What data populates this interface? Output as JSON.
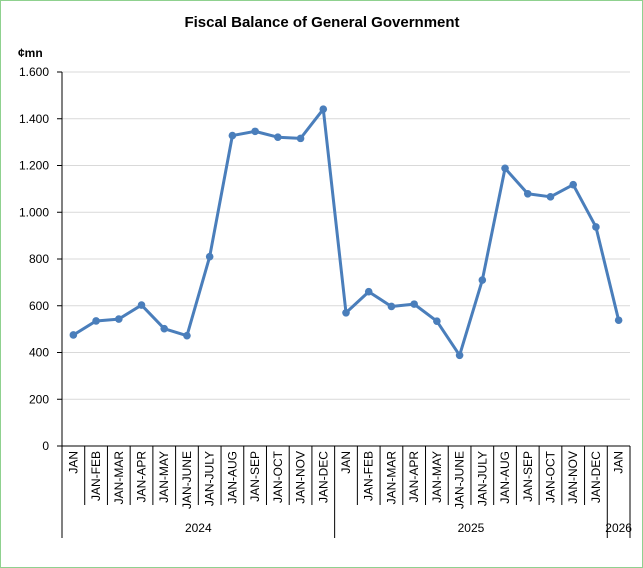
{
  "chart_data": {
    "type": "line",
    "title": "Fiscal Balance of General Government",
    "ylabel": "¢mn",
    "ylim": [
      0,
      1600
    ],
    "yticks": [
      0,
      200,
      400,
      600,
      800,
      1000,
      1200,
      1400,
      1600
    ],
    "ytick_labels": [
      "0",
      "200",
      "400",
      "600",
      "800",
      "1.000",
      "1.200",
      "1.400",
      "1.600"
    ],
    "grid": true,
    "legend": "none",
    "line_color": "#4a7ebb",
    "grid_color": "#d9d9d9",
    "categories": [
      "JAN",
      "JAN-FEB",
      "JAN-MAR",
      "JAN-APR",
      "JAN-MAY",
      "JAN-JUNE",
      "JAN-JULY",
      "JAN-AUG",
      "JAN-SEP",
      "JAN-OCT",
      "JAN-NOV",
      "JAN-DEC",
      "JAN",
      "JAN-FEB",
      "JAN-MAR",
      "JAN-APR",
      "JAN-MAY",
      "JAN-JUNE",
      "JAN-JULY",
      "JAN-AUG",
      "JAN-SEP",
      "JAN-OCT",
      "JAN-NOV",
      "JAN-DEC",
      "JAN"
    ],
    "groups": [
      {
        "label": "2024",
        "count": 12
      },
      {
        "label": "2025",
        "count": 12
      },
      {
        "label": "2026",
        "count": 1
      }
    ],
    "series": [
      {
        "name": "Fiscal Balance",
        "values": [
          475,
          535,
          543,
          603,
          502,
          472,
          810,
          1328,
          1346,
          1321,
          1316,
          1441,
          570,
          660,
          597,
          607,
          534,
          388,
          710,
          1188,
          1079,
          1066,
          1118,
          937,
          538
        ]
      }
    ]
  }
}
